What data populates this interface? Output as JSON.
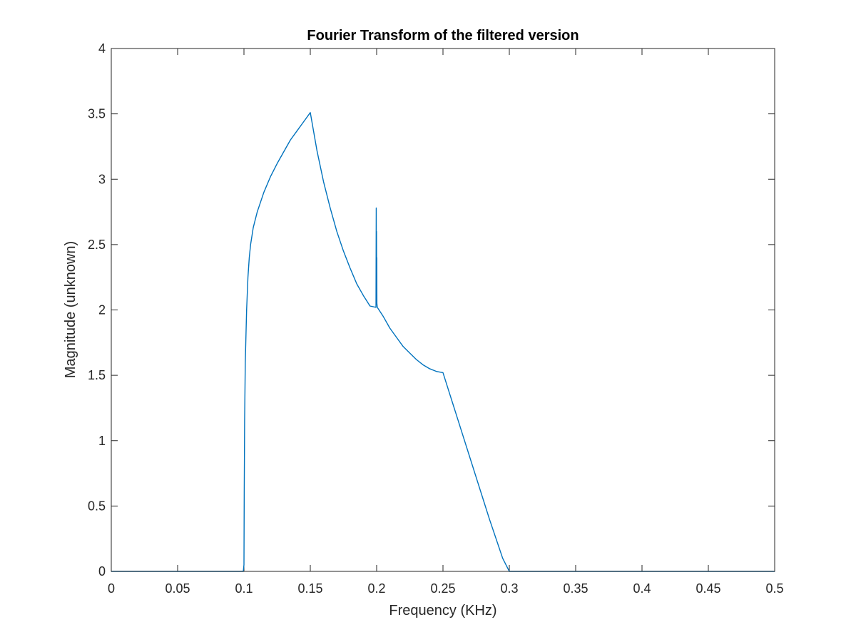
{
  "chart_data": {
    "type": "line",
    "title": "Fourier Transform of the filtered version",
    "xlabel": "Frequency (KHz)",
    "ylabel": "Magnitude (unknown)",
    "xlim": [
      0,
      0.5
    ],
    "ylim": [
      0,
      4
    ],
    "xticks": [
      0,
      0.05,
      0.1,
      0.15,
      0.2,
      0.25,
      0.3,
      0.35,
      0.4,
      0.45,
      0.5
    ],
    "xtick_labels": [
      "0",
      "0.05",
      "0.1",
      "0.15",
      "0.2",
      "0.25",
      "0.3",
      "0.35",
      "0.4",
      "0.45",
      "0.5"
    ],
    "yticks": [
      0,
      0.5,
      1,
      1.5,
      2,
      2.5,
      3,
      3.5,
      4
    ],
    "ytick_labels": [
      "0",
      "0.5",
      "1",
      "1.5",
      "2",
      "2.5",
      "3",
      "3.5",
      "4"
    ],
    "grid": false,
    "series": [
      {
        "color": "#0072BD",
        "x": [
          0,
          0.0995,
          0.1,
          0.1002,
          0.1005,
          0.101,
          0.102,
          0.103,
          0.104,
          0.105,
          0.107,
          0.11,
          0.115,
          0.12,
          0.125,
          0.13,
          0.135,
          0.14,
          0.145,
          0.15,
          0.155,
          0.16,
          0.165,
          0.17,
          0.175,
          0.18,
          0.185,
          0.19,
          0.195,
          0.1995,
          0.1997,
          0.1998,
          0.1999,
          0.2,
          0.2001,
          0.2002,
          0.2005,
          0.205,
          0.21,
          0.215,
          0.22,
          0.225,
          0.23,
          0.235,
          0.24,
          0.245,
          0.25,
          0.255,
          0.26,
          0.265,
          0.27,
          0.275,
          0.28,
          0.285,
          0.29,
          0.295,
          0.2995,
          0.3,
          0.35,
          0.4,
          0.45,
          0.5
        ],
        "y": [
          0,
          0,
          0.05,
          0.6,
          1.15,
          1.6,
          2.0,
          2.25,
          2.4,
          2.5,
          2.63,
          2.75,
          2.9,
          3.02,
          3.12,
          3.21,
          3.3,
          3.37,
          3.44,
          3.51,
          3.22,
          2.98,
          2.78,
          2.6,
          2.45,
          2.32,
          2.2,
          2.11,
          2.03,
          2.02,
          2.78,
          2.05,
          2.6,
          2.1,
          2.4,
          2.05,
          2.02,
          1.95,
          1.86,
          1.79,
          1.72,
          1.67,
          1.62,
          1.58,
          1.55,
          1.53,
          1.52,
          1.36,
          1.2,
          1.04,
          0.88,
          0.72,
          0.56,
          0.4,
          0.25,
          0.1,
          0.01,
          0,
          0,
          0,
          0,
          0
        ]
      }
    ]
  }
}
